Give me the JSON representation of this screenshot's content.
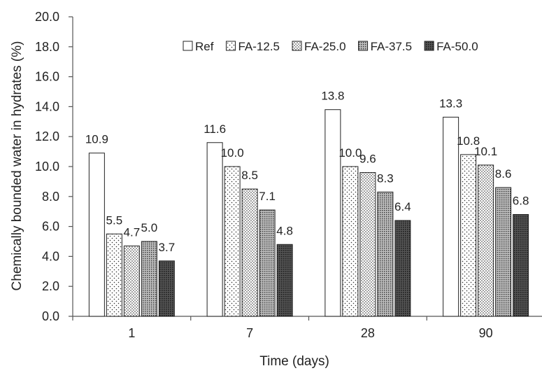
{
  "chart_data": {
    "type": "bar",
    "title": "",
    "xlabel": "Time (days)",
    "ylabel": "Chemically bounded water in hydrates (%)",
    "ylim": [
      0,
      20
    ],
    "y_ticks": [
      "0.0",
      "2.0",
      "4.0",
      "6.0",
      "8.0",
      "10.0",
      "12.0",
      "14.0",
      "16.0",
      "18.0",
      "20.0"
    ],
    "categories": [
      "1",
      "7",
      "28",
      "90"
    ],
    "legend_position": "top-right",
    "grid": false,
    "series": [
      {
        "name": "Ref",
        "pattern": "solid-white",
        "values": [
          10.9,
          11.6,
          13.8,
          13.3
        ],
        "labels": [
          "10.9",
          "11.6",
          "13.8",
          "13.3"
        ]
      },
      {
        "name": "FA-12.5",
        "pattern": "sparse-dots",
        "values": [
          5.5,
          10.0,
          10.0,
          10.8
        ],
        "labels": [
          "5.5",
          "10.0",
          "10.0",
          "10.8"
        ]
      },
      {
        "name": "FA-25.0",
        "pattern": "medium-dots",
        "values": [
          4.7,
          8.5,
          9.6,
          10.1
        ],
        "labels": [
          "4.7",
          "8.5",
          "9.6",
          "10.1"
        ]
      },
      {
        "name": "FA-37.5",
        "pattern": "dense-dots",
        "values": [
          5.0,
          7.1,
          8.3,
          8.6
        ],
        "labels": [
          "5.0",
          "7.1",
          "8.3",
          "8.6"
        ]
      },
      {
        "name": "FA-50.0",
        "pattern": "dark-grid",
        "values": [
          3.7,
          4.8,
          6.4,
          6.8
        ],
        "labels": [
          "3.7",
          "4.8",
          "6.4",
          "6.8"
        ]
      }
    ]
  }
}
